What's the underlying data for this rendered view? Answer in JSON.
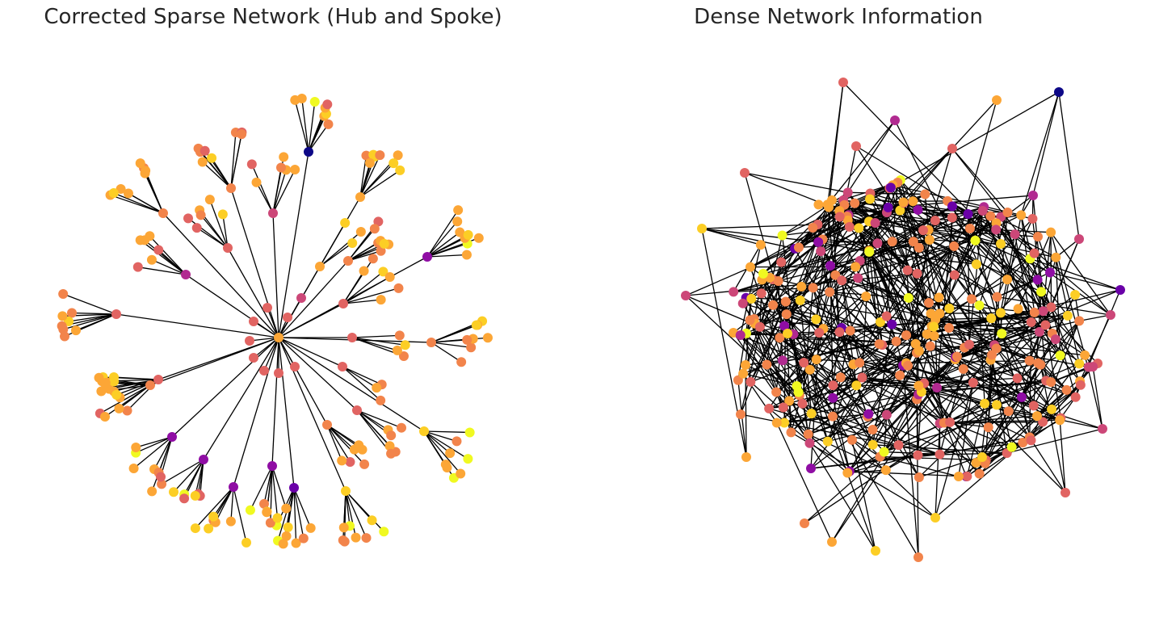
{
  "panels": {
    "left": {
      "title": "Corrected Sparse Network (Hub and Spoke)",
      "layout": "hub-and-spoke",
      "spoke_count": 35
    },
    "right": {
      "title": "Dense Network Information",
      "layout": "dense-random",
      "node_count": 300
    }
  },
  "colors": {
    "edge": "#000000",
    "colormap": "plasma",
    "palette": [
      "#0d0887",
      "#6a00a8",
      "#8f0da4",
      "#b12a90",
      "#cc4778",
      "#e16462",
      "#f2844b",
      "#fca636",
      "#fcce25",
      "#f0f921"
    ]
  }
}
